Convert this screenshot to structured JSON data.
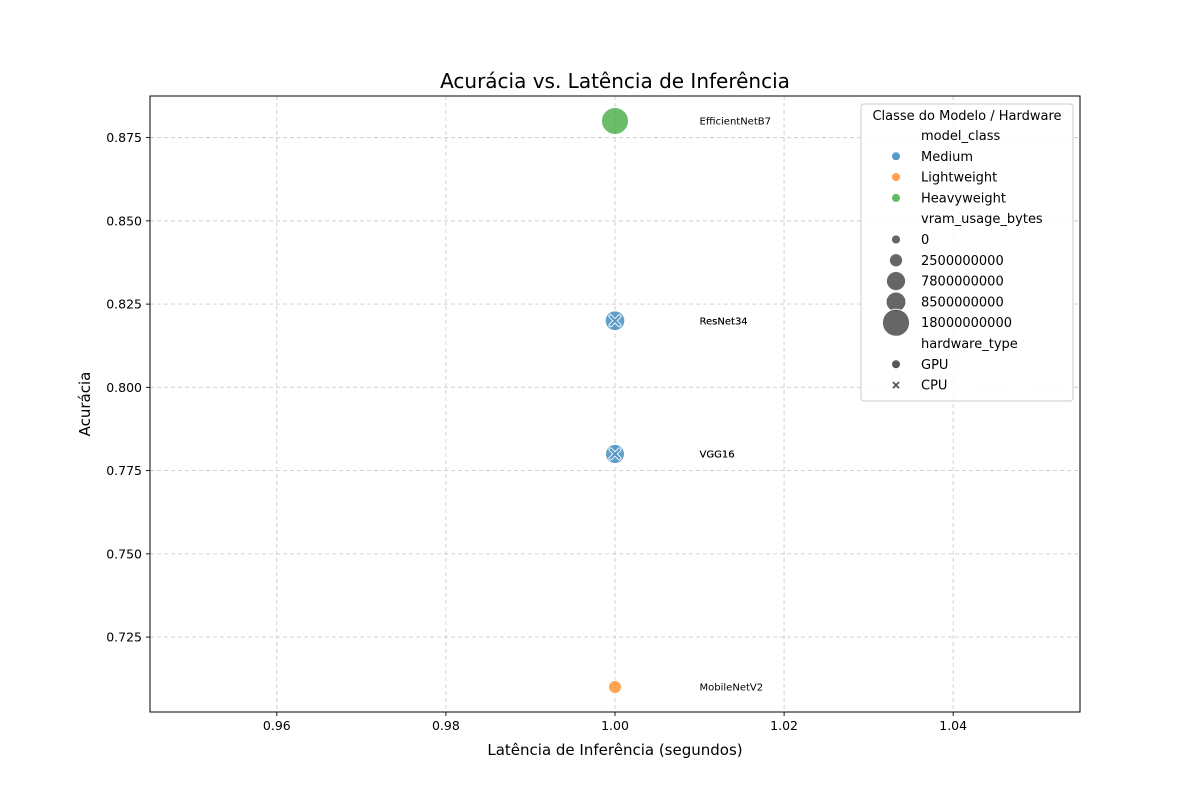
{
  "chart_data": {
    "type": "scatter",
    "title": "Acurácia vs. Latência de Inferência",
    "xlabel": "Latência de Inferência (segundos)",
    "ylabel": "Acurácia",
    "xlim": [
      0.945,
      1.055
    ],
    "ylim": [
      0.7025,
      0.8875
    ],
    "x_ticks": [
      0.96,
      0.98,
      1.0,
      1.02,
      1.04
    ],
    "x_tick_labels": [
      "0.96",
      "0.98",
      "1.00",
      "1.02",
      "1.04"
    ],
    "y_ticks": [
      0.725,
      0.75,
      0.775,
      0.8,
      0.825,
      0.85,
      0.875
    ],
    "y_tick_labels": [
      "0.725",
      "0.750",
      "0.775",
      "0.800",
      "0.825",
      "0.850",
      "0.875"
    ],
    "grid": true,
    "legend_position": "top-right",
    "colors": {
      "Medium": "#1f77b4",
      "Lightweight": "#ff7f0e",
      "Heavyweight": "#2ca02c",
      "neutral": "#555555"
    },
    "points": [
      {
        "model": "EfficientNetB7",
        "x": 1.0,
        "y": 0.88,
        "model_class": "Heavyweight",
        "vram_usage_bytes": 18000000000,
        "hardware_type": "GPU"
      },
      {
        "model": "ResNet34",
        "x": 1.0,
        "y": 0.82,
        "model_class": "Medium",
        "vram_usage_bytes": 8500000000,
        "hardware_type": "GPU"
      },
      {
        "model": "ResNet34",
        "x": 1.0,
        "y": 0.82,
        "model_class": "Medium",
        "vram_usage_bytes": 0,
        "hardware_type": "CPU"
      },
      {
        "model": "VGG16",
        "x": 1.0,
        "y": 0.78,
        "model_class": "Medium",
        "vram_usage_bytes": 7800000000,
        "hardware_type": "GPU"
      },
      {
        "model": "VGG16",
        "x": 1.0,
        "y": 0.78,
        "model_class": "Medium",
        "vram_usage_bytes": 0,
        "hardware_type": "CPU"
      },
      {
        "model": "MobileNetV2",
        "x": 1.0,
        "y": 0.71,
        "model_class": "Lightweight",
        "vram_usage_bytes": 2500000000,
        "hardware_type": "GPU"
      }
    ],
    "legend": {
      "title": "Classe do Modelo / Hardware",
      "sections": [
        {
          "header": "model_class",
          "entries": [
            {
              "label": "Medium",
              "kind": "color",
              "key": "Medium"
            },
            {
              "label": "Lightweight",
              "kind": "color",
              "key": "Lightweight"
            },
            {
              "label": "Heavyweight",
              "kind": "color",
              "key": "Heavyweight"
            }
          ]
        },
        {
          "header": "vram_usage_bytes",
          "entries": [
            {
              "label": "0",
              "kind": "size",
              "value": 0
            },
            {
              "label": "2500000000",
              "kind": "size",
              "value": 2500000000
            },
            {
              "label": "7800000000",
              "kind": "size",
              "value": 7800000000
            },
            {
              "label": "8500000000",
              "kind": "size",
              "value": 8500000000
            },
            {
              "label": "18000000000",
              "kind": "size",
              "value": 18000000000
            }
          ]
        },
        {
          "header": "hardware_type",
          "entries": [
            {
              "label": "GPU",
              "kind": "marker",
              "marker": "circle"
            },
            {
              "label": "CPU",
              "kind": "marker",
              "marker": "x"
            }
          ]
        }
      ]
    }
  }
}
